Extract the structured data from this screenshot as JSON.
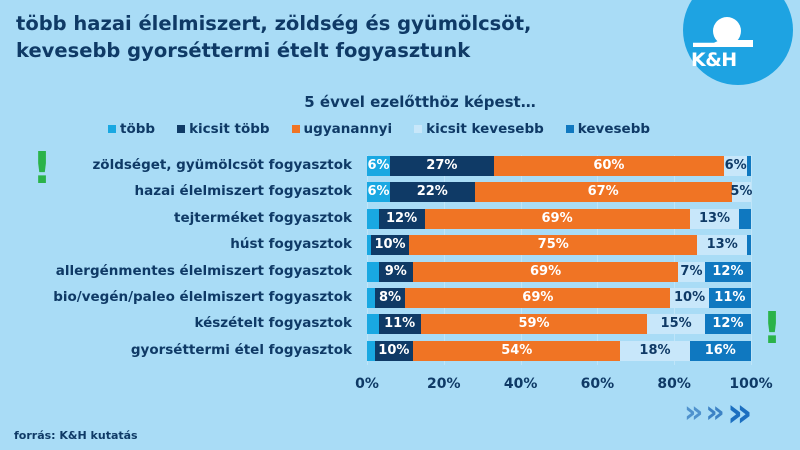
{
  "title_line1": "több hazai élelmiszert, zöldség és gyümölcsöt,",
  "title_line2": "kevesebb gyorséttermi ételt fogyasztunk",
  "logo_text": "K&H",
  "source": "forrás: K&H kutatás",
  "colors": {
    "background": "#a9dcf6",
    "tobb": "#19a8e2",
    "kicsit_tobb": "#0f3a66",
    "ugyanannyi": "#f07424",
    "kicsit_kevesebb": "#c8e7fa",
    "kevesebb": "#0f78c0",
    "exclamation": "#2bb34a"
  },
  "chart_data": {
    "type": "bar",
    "orientation": "horizontal-stacked-100",
    "title": "5 évvel ezelőtthöz képest…",
    "xlim": [
      0,
      100
    ],
    "x_ticks": [
      "0%",
      "20%",
      "40%",
      "60%",
      "80%",
      "100%"
    ],
    "legend_position": "top",
    "categories": [
      "zöldséget, gyümölcsöt fogyasztok",
      "hazai élelmiszert fogyasztok",
      "tejterméket fogyasztok",
      "húst fogyasztok",
      "allergénmentes élelmiszert fogyasztok",
      "bio/vegén/paleo élelmiszert fogyasztok",
      "készételt fogyasztok",
      "gyorséttermi étel fogyasztok"
    ],
    "series": [
      {
        "name": "több",
        "color": "#19a8e2",
        "values": [
          6,
          6,
          3,
          1,
          3,
          2,
          3,
          2
        ],
        "labels": [
          "6%",
          "6%",
          null,
          null,
          null,
          null,
          null,
          null
        ],
        "label_color": "#ffffff"
      },
      {
        "name": "kicsit több",
        "color": "#0f3a66",
        "values": [
          27,
          22,
          12,
          10,
          9,
          8,
          11,
          10
        ],
        "labels": [
          "27%",
          "22%",
          "12%",
          "10%",
          "9%",
          "8%",
          "11%",
          "10%"
        ],
        "label_color": "#ffffff"
      },
      {
        "name": "ugyanannyi",
        "color": "#f07424",
        "values": [
          60,
          67,
          69,
          75,
          69,
          69,
          59,
          54
        ],
        "labels": [
          "60%",
          "67%",
          "69%",
          "75%",
          "69%",
          "69%",
          "59%",
          "54%"
        ],
        "label_color": "#ffffff"
      },
      {
        "name": "kicsit kevesebb",
        "color": "#c8e7fa",
        "values": [
          6,
          5,
          13,
          13,
          7,
          10,
          15,
          18
        ],
        "labels": [
          "6%",
          "5%",
          "13%",
          "13%",
          "7%",
          "10%",
          "15%",
          "18%"
        ],
        "label_color": "#0f3a66"
      },
      {
        "name": "kevesebb",
        "color": "#0f78c0",
        "values": [
          1,
          0,
          3,
          1,
          12,
          11,
          12,
          16
        ],
        "labels": [
          null,
          null,
          null,
          null,
          "12%",
          "11%",
          "12%",
          "16%"
        ],
        "label_color": "#ffffff"
      }
    ]
  }
}
